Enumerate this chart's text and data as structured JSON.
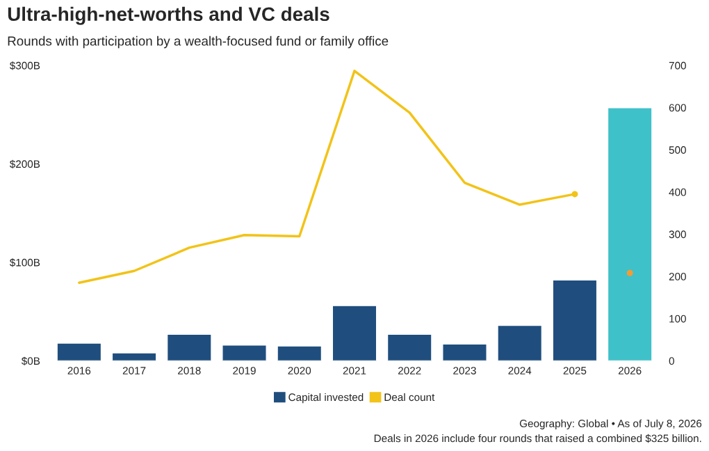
{
  "chart_data": {
    "type": "bar",
    "title": "Ultra-high-net-worths and VC deals",
    "subtitle": "Rounds with participation by a wealth-focused fund or family office",
    "categories": [
      "2016",
      "2017",
      "2018",
      "2019",
      "2020",
      "2021",
      "2022",
      "2023",
      "2024",
      "2025",
      "2026"
    ],
    "series": [
      {
        "name": "Capital invested",
        "color": "#1f4e7e",
        "colors": [
          "#1f4e7e",
          "#1f4e7e",
          "#1f4e7e",
          "#1f4e7e",
          "#1f4e7e",
          "#1f4e7e",
          "#1f4e7e",
          "#1f4e7e",
          "#1f4e7e",
          "#1f4e7e",
          "#3fc1c9"
        ],
        "values": [
          18,
          8,
          27,
          16,
          15,
          56,
          27,
          17,
          36,
          82,
          257
        ]
      },
      {
        "name": "Deal count",
        "type": "line",
        "axis": "y2",
        "color": "#f2c318",
        "values": [
          185,
          213,
          268,
          298,
          295,
          687,
          588,
          422,
          370,
          395,
          null
        ]
      },
      {
        "type": "scatter",
        "axis": "y2",
        "color": "#f2c318",
        "colors": [
          null,
          null,
          null,
          null,
          null,
          null,
          null,
          null,
          null,
          "#f2c318",
          "#f39c33"
        ],
        "values": [
          null,
          null,
          null,
          null,
          null,
          null,
          null,
          null,
          null,
          395,
          208
        ]
      }
    ],
    "ylim": [
      0,
      300
    ],
    "yticks": [
      {
        "value": 0,
        "label": "$0B"
      },
      {
        "value": 100,
        "label": "$100B"
      },
      {
        "value": 200,
        "label": "$200B"
      },
      {
        "value": 300,
        "label": "$300B"
      }
    ],
    "y2lim": [
      0,
      700
    ],
    "y2ticks": [
      0,
      100,
      200,
      300,
      400,
      500,
      600,
      700
    ],
    "legend": "bottom",
    "grid": false,
    "annotations": [
      "Geography: Global • As of July 8, 2026",
      "Deals in 2026 include four rounds that raised a combined $325 billion."
    ]
  }
}
